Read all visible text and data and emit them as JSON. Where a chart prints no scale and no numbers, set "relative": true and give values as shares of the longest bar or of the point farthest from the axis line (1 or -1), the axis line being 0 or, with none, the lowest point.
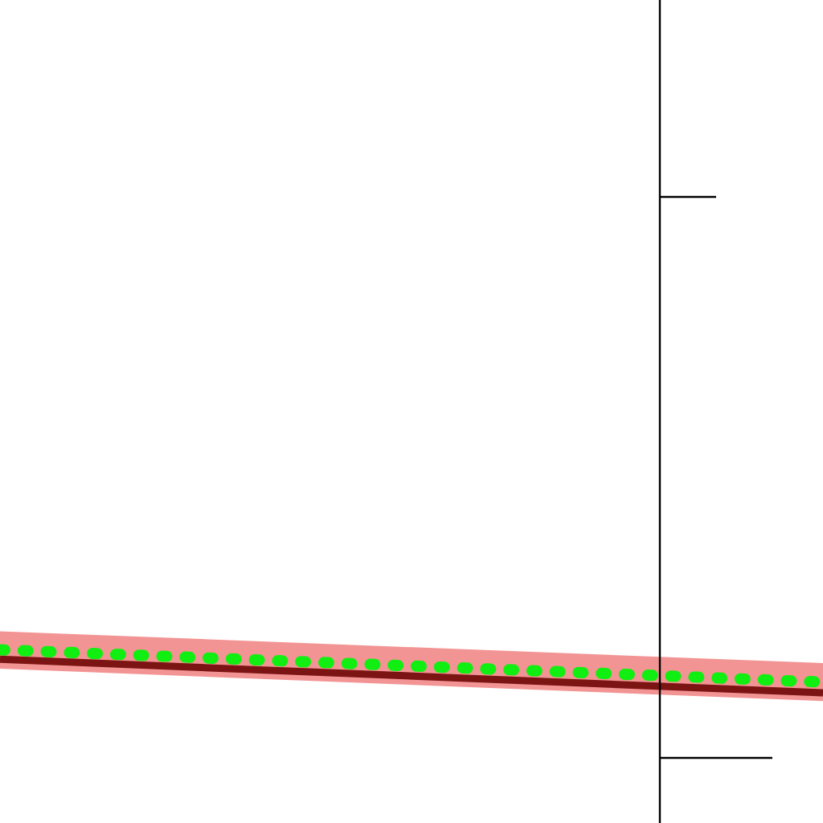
{
  "chart_data": {
    "type": "line",
    "relative": true,
    "categories": [
      null,
      null
    ],
    "series": [
      {
        "color": "#f39494",
        "values": [
          null,
          null
        ],
        "lower": [
          0.56,
          -0.19
        ],
        "upper": [
          1.43,
          0.69
        ]
      },
      {
        "color": "#7d1414",
        "values": [
          0.78,
          0
        ]
      },
      {
        "color": "#11ee11",
        "values": [
          1,
          0.25
        ],
        "line_style": "dotted"
      }
    ],
    "marker": "none",
    "legend": false,
    "grid": false
  }
}
